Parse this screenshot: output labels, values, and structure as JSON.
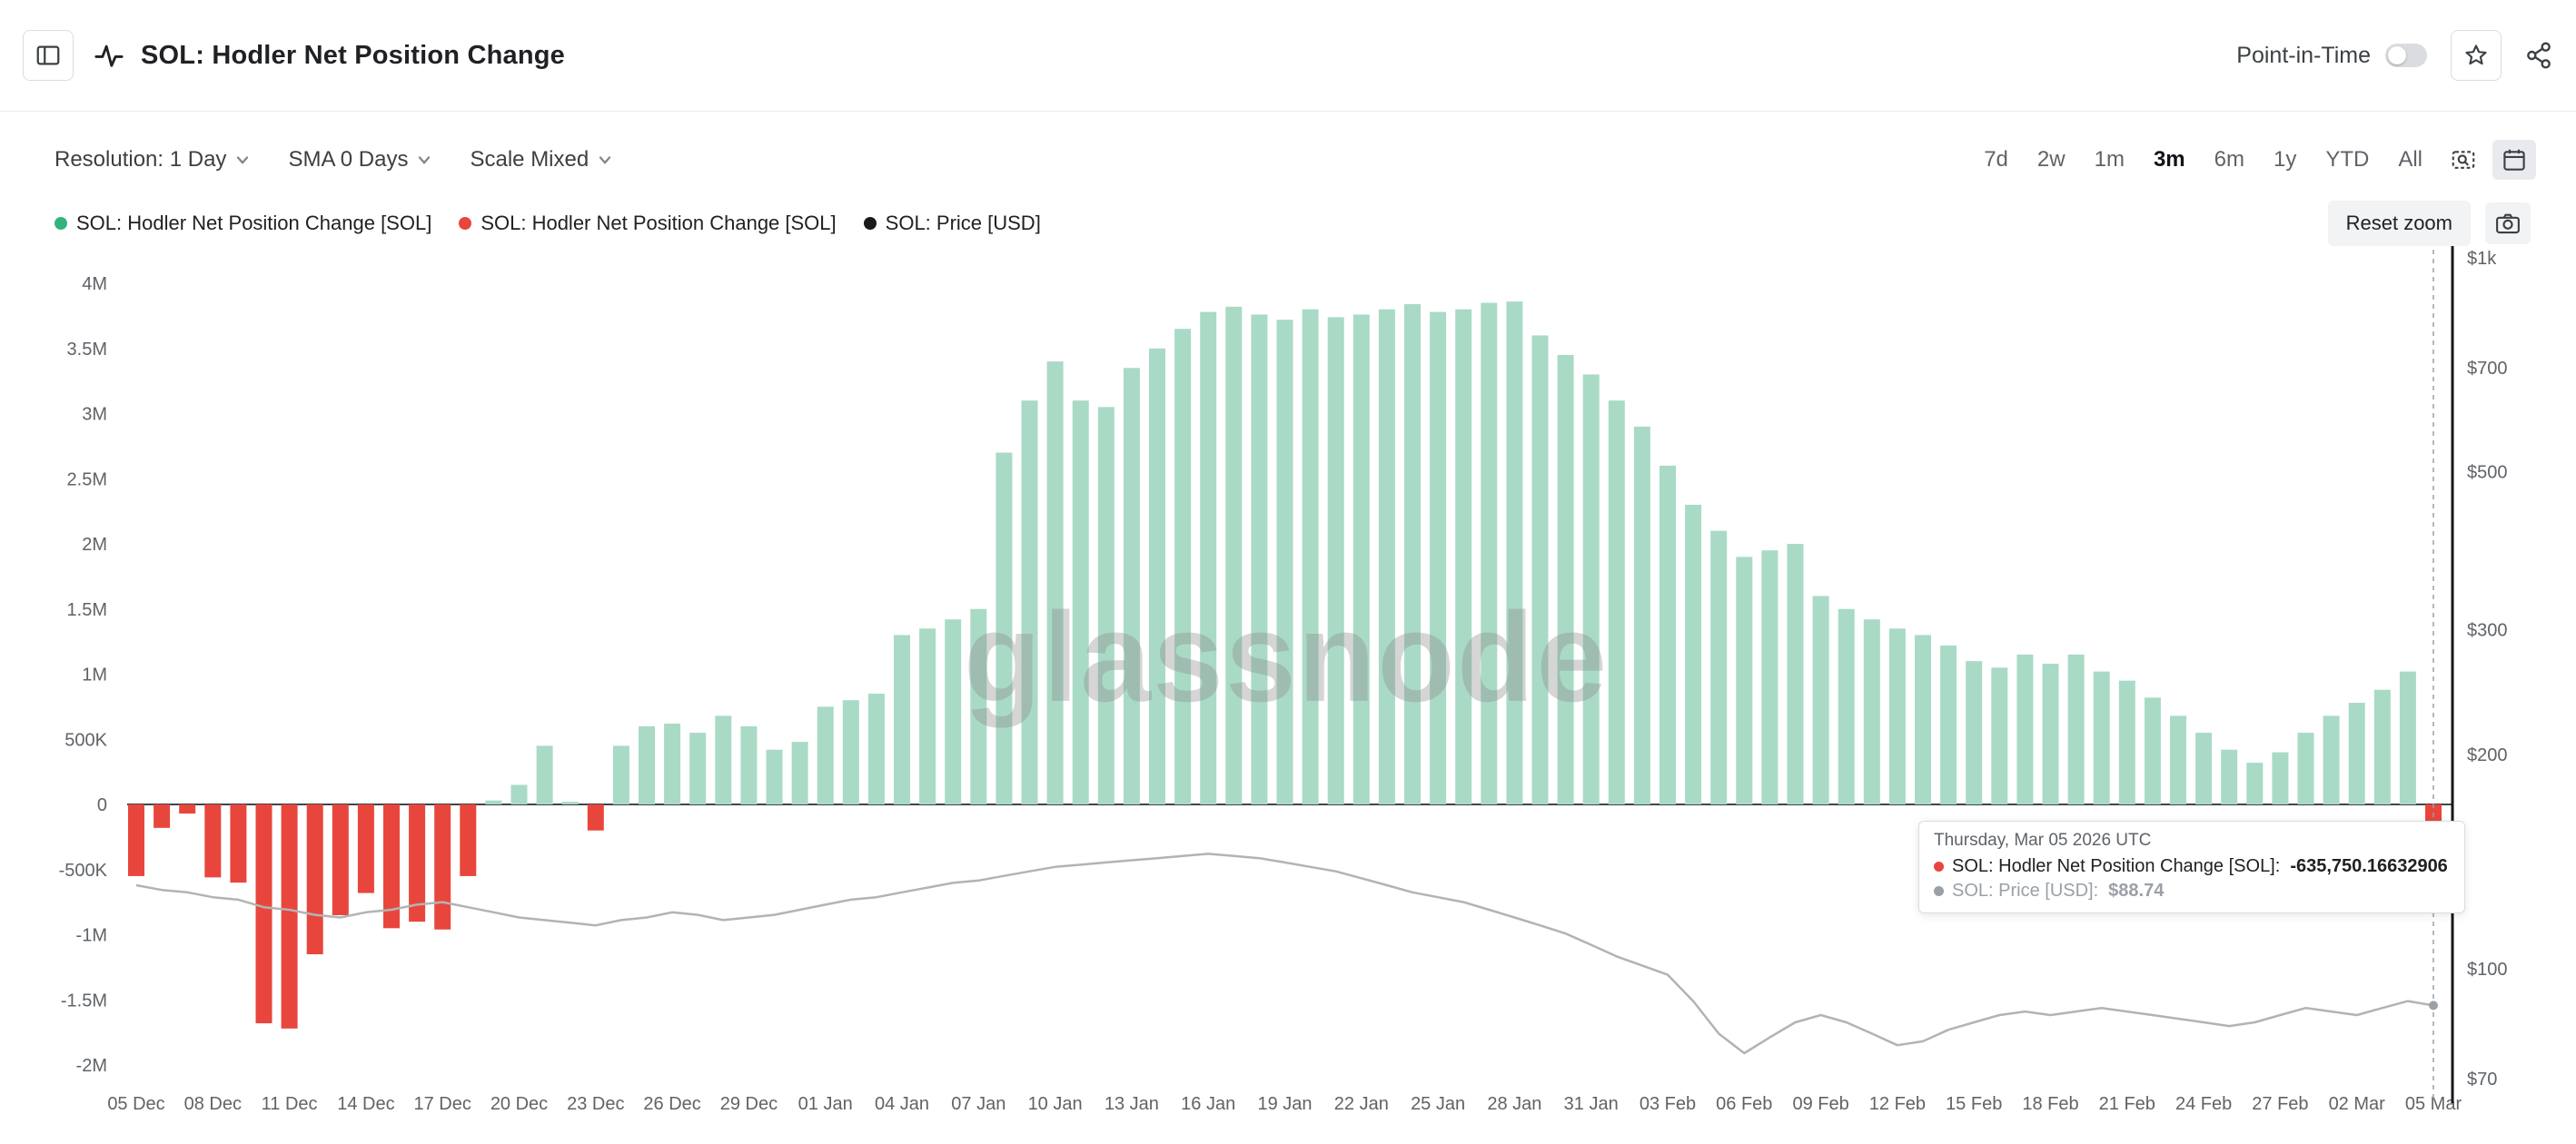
{
  "header": {
    "title": "SOL: Hodler Net Position Change",
    "point_in_time": {
      "label": "Point-in-Time",
      "enabled": false
    }
  },
  "toolbar": {
    "dropdowns": [
      {
        "id": "resolution",
        "label": "Resolution: 1 Day"
      },
      {
        "id": "sma",
        "label": "SMA 0 Days"
      },
      {
        "id": "scale",
        "label": "Scale Mixed"
      }
    ],
    "ranges": [
      "7d",
      "2w",
      "1m",
      "3m",
      "6m",
      "1y",
      "YTD",
      "All"
    ],
    "active_range": "3m"
  },
  "legend": {
    "items": [
      {
        "label": "SOL: Hodler Net Position Change [SOL]",
        "color": "#33b27f"
      },
      {
        "label": "SOL: Hodler Net Position Change [SOL]",
        "color": "#e8463d"
      },
      {
        "label": "SOL: Price [USD]",
        "color": "#1a1a1a"
      }
    ],
    "reset_zoom": "Reset zoom"
  },
  "watermark": "glassnode",
  "tooltip": {
    "date": "Thursday, Mar 05 2026 UTC",
    "rows": [
      {
        "dot_color": "#e8463d",
        "label": "SOL: Hodler Net Position Change [SOL]:",
        "value": "-635,750.16632906",
        "muted": false
      },
      {
        "dot_color": "#9aa0a6",
        "label": "SOL: Price [USD]:",
        "value": "$88.74",
        "muted": true
      }
    ]
  },
  "chart_data": {
    "type": "bar",
    "title": "SOL: Hodler Net Position Change",
    "resolution": "1 Day",
    "start_date": "2025-12-05",
    "end_date": "2026-03-05",
    "tick_every_days": 3,
    "x_tick_labels": [
      "05 Dec",
      "08 Dec",
      "11 Dec",
      "14 Dec",
      "17 Dec",
      "20 Dec",
      "23 Dec",
      "26 Dec",
      "29 Dec",
      "01 Jan",
      "04 Jan",
      "07 Jan",
      "10 Jan",
      "13 Jan",
      "16 Jan",
      "19 Jan",
      "22 Jan",
      "25 Jan",
      "28 Jan",
      "31 Jan",
      "03 Feb",
      "06 Feb",
      "09 Feb",
      "12 Feb",
      "15 Feb",
      "18 Feb",
      "21 Feb",
      "24 Feb",
      "27 Feb",
      "02 Mar",
      "05 Mar"
    ],
    "left_axis": {
      "labels": [
        "4M",
        "3.5M",
        "3M",
        "2.5M",
        "2M",
        "1.5M",
        "1M",
        "500K",
        "0",
        "-500K",
        "-1M",
        "-1.5M",
        "-2M"
      ],
      "values": [
        4000000,
        3500000,
        3000000,
        2500000,
        2000000,
        1500000,
        1000000,
        500000,
        0,
        -500000,
        -1000000,
        -1500000,
        -2000000
      ]
    },
    "right_axis": {
      "scale": "log",
      "labels": [
        "$1k",
        "$700",
        "$500",
        "$300",
        "$200",
        "$100",
        "$70"
      ],
      "values": [
        1000,
        700,
        500,
        300,
        200,
        100,
        70
      ]
    },
    "series": [
      {
        "name": "SOL: Hodler Net Position Change [SOL]",
        "type": "bar",
        "axis": "left",
        "positive_color": "#a9dac5",
        "negative_color": "#e8463d",
        "values": [
          -550000,
          -180000,
          -70000,
          -560000,
          -600000,
          -1680000,
          -1720000,
          -1150000,
          -850000,
          -680000,
          -950000,
          -900000,
          -960000,
          -550000,
          30000,
          150000,
          450000,
          20000,
          -200000,
          450000,
          600000,
          620000,
          550000,
          680000,
          600000,
          420000,
          480000,
          750000,
          800000,
          850000,
          1300000,
          1350000,
          1420000,
          1500000,
          2700000,
          3100000,
          3400000,
          3100000,
          3050000,
          3350000,
          3500000,
          3650000,
          3780000,
          3820000,
          3760000,
          3720000,
          3800000,
          3740000,
          3760000,
          3800000,
          3840000,
          3780000,
          3800000,
          3850000,
          3860000,
          3600000,
          3450000,
          3300000,
          3100000,
          2900000,
          2600000,
          2300000,
          2100000,
          1900000,
          1950000,
          2000000,
          1600000,
          1500000,
          1420000,
          1350000,
          1300000,
          1220000,
          1100000,
          1050000,
          1150000,
          1080000,
          1150000,
          1020000,
          950000,
          820000,
          680000,
          550000,
          420000,
          320000,
          400000,
          550000,
          680000,
          780000,
          880000,
          1020000,
          -635750.16632906
        ]
      },
      {
        "name": "SOL: Price [USD]",
        "type": "line",
        "axis": "right",
        "color": "#b3b3b3",
        "values": [
          131,
          129,
          128,
          126,
          125,
          122,
          121,
          119,
          118,
          120,
          121,
          123,
          124,
          122,
          120,
          118,
          117,
          116,
          115,
          117,
          118,
          120,
          119,
          117,
          118,
          119,
          121,
          123,
          125,
          126,
          128,
          130,
          132,
          133,
          135,
          137,
          139,
          140,
          141,
          142,
          143,
          144,
          145,
          144,
          143,
          141,
          139,
          137,
          134,
          131,
          128,
          126,
          124,
          121,
          118,
          115,
          112,
          108,
          104,
          101,
          98,
          90,
          81,
          76,
          80,
          84,
          86,
          84,
          81,
          78,
          79,
          82,
          84,
          86,
          87,
          86,
          87,
          88,
          87,
          86,
          85,
          84,
          83,
          84,
          86,
          88,
          87,
          86,
          88,
          90,
          88.74
        ]
      }
    ]
  }
}
